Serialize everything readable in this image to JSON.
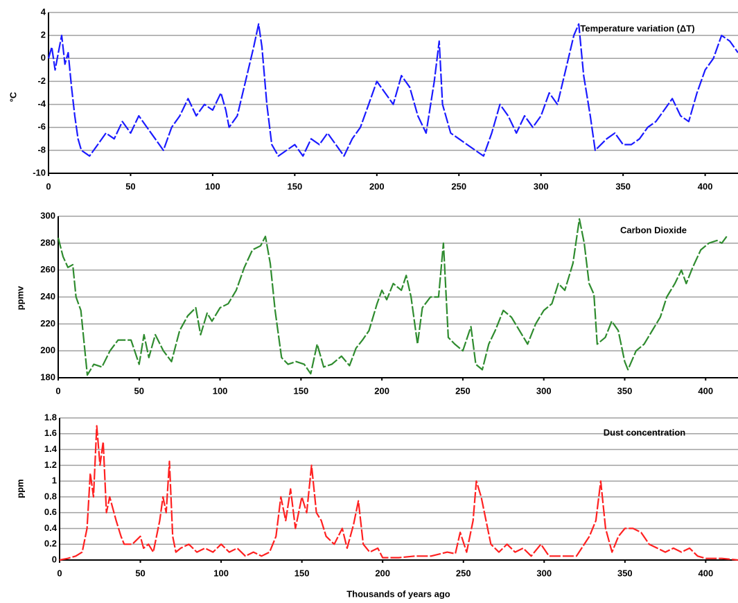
{
  "chart_data": [
    {
      "type": "line",
      "title": "Temperature variation (ΔT)",
      "y_label": "°C",
      "color": "#1a1aff",
      "grid": true,
      "xlim": [
        0,
        420
      ],
      "xticks": [
        0,
        50,
        100,
        150,
        200,
        250,
        300,
        350,
        400
      ],
      "ylim": [
        -10,
        4
      ],
      "yticks": [
        -10,
        -8,
        -6,
        -4,
        -2,
        0,
        2,
        4
      ],
      "x": [
        0,
        2,
        4,
        6,
        8,
        10,
        12,
        14,
        16,
        18,
        20,
        25,
        30,
        35,
        40,
        45,
        50,
        55,
        60,
        65,
        70,
        75,
        80,
        85,
        90,
        95,
        100,
        105,
        108,
        110,
        115,
        120,
        125,
        128,
        130,
        133,
        136,
        140,
        145,
        150,
        155,
        160,
        165,
        170,
        175,
        180,
        185,
        190,
        195,
        200,
        205,
        210,
        215,
        220,
        225,
        230,
        235,
        238,
        240,
        245,
        250,
        255,
        260,
        265,
        270,
        275,
        280,
        285,
        290,
        295,
        300,
        305,
        310,
        315,
        320,
        323,
        326,
        330,
        333,
        340,
        345,
        350,
        355,
        360,
        365,
        370,
        375,
        380,
        385,
        390,
        395,
        400,
        405,
        410,
        415,
        420
      ],
      "values": [
        0,
        1,
        -1,
        0.5,
        2,
        -0.5,
        0.5,
        -2.5,
        -5,
        -7,
        -8,
        -8.5,
        -7.5,
        -6.5,
        -7,
        -5.5,
        -6.5,
        -5,
        -6,
        -7,
        -8,
        -6,
        -5,
        -3.5,
        -5,
        -4,
        -4.5,
        -3,
        -4.5,
        -6,
        -5,
        -2,
        1,
        3,
        1,
        -4,
        -7.5,
        -8.5,
        -8,
        -7.5,
        -8.5,
        -7,
        -7.5,
        -6.5,
        -7.5,
        -8.5,
        -7,
        -6,
        -4,
        -2,
        -3,
        -4,
        -1.5,
        -2.5,
        -5,
        -6.5,
        -2,
        1.5,
        -4,
        -6.5,
        -7,
        -7.5,
        -8,
        -8.5,
        -6.5,
        -4,
        -5,
        -6.5,
        -5,
        -6,
        -5,
        -3,
        -4,
        -1,
        2,
        3,
        -1.5,
        -5,
        -8,
        -7,
        -6.5,
        -7.5,
        -7.5,
        -7,
        -6,
        -5.5,
        -4.5,
        -3.5,
        -5,
        -5.5,
        -3,
        -1,
        0,
        2,
        1.5,
        0.5
      ]
    },
    {
      "type": "line",
      "title": "Carbon Dioxide",
      "y_label": "ppmv",
      "color": "#2e8b2e",
      "grid": true,
      "xlim": [
        0,
        420
      ],
      "xticks": [
        0,
        50,
        100,
        150,
        200,
        250,
        300,
        350,
        400
      ],
      "ylim": [
        180,
        300
      ],
      "yticks": [
        180,
        200,
        220,
        240,
        260,
        280,
        300
      ],
      "x": [
        0,
        3,
        6,
        9,
        11,
        14,
        18,
        22,
        27,
        32,
        37,
        45,
        50,
        53,
        56,
        60,
        65,
        70,
        75,
        80,
        85,
        88,
        92,
        95,
        100,
        105,
        110,
        115,
        120,
        125,
        128,
        131,
        134,
        138,
        142,
        147,
        152,
        156,
        160,
        164,
        169,
        175,
        180,
        184,
        188,
        192,
        197,
        200,
        203,
        207,
        212,
        215,
        218,
        222,
        225,
        230,
        235,
        238,
        241,
        245,
        250,
        255,
        258,
        262,
        266,
        270,
        275,
        280,
        285,
        290,
        295,
        300,
        305,
        309,
        313,
        318,
        322,
        325,
        328,
        331,
        333,
        338,
        342,
        346,
        350,
        352,
        357,
        362,
        367,
        372,
        376,
        381,
        385,
        388,
        392,
        397,
        402,
        407,
        410,
        413
      ],
      "values": [
        284,
        270,
        262,
        264,
        240,
        230,
        182,
        190,
        188,
        200,
        208,
        208,
        190,
        212,
        195,
        212,
        200,
        192,
        215,
        226,
        232,
        212,
        228,
        222,
        232,
        235,
        245,
        262,
        275,
        278,
        285,
        265,
        230,
        195,
        190,
        192,
        190,
        183,
        205,
        188,
        190,
        196,
        189,
        202,
        208,
        215,
        235,
        245,
        238,
        250,
        245,
        256,
        240,
        205,
        232,
        240,
        240,
        280,
        210,
        205,
        200,
        218,
        190,
        186,
        205,
        215,
        230,
        225,
        215,
        205,
        220,
        230,
        235,
        250,
        245,
        265,
        298,
        280,
        250,
        242,
        205,
        210,
        222,
        215,
        192,
        186,
        200,
        205,
        215,
        225,
        240,
        250,
        260,
        250,
        262,
        275,
        280,
        282,
        280,
        285
      ]
    },
    {
      "type": "line",
      "title": "Dust concentration",
      "y_label": "ppm",
      "x_label": "Thousands of years ago",
      "color": "#ff2020",
      "grid": true,
      "xlim": [
        0,
        420
      ],
      "xticks": [
        0,
        50,
        100,
        150,
        200,
        250,
        300,
        350,
        400
      ],
      "ylim": [
        0,
        1.8
      ],
      "yticks": [
        0,
        0.2,
        0.4,
        0.6,
        0.8,
        1,
        1.2,
        1.4,
        1.6,
        1.8
      ],
      "x": [
        0,
        5,
        10,
        14,
        17,
        19,
        21,
        23,
        25,
        27,
        29,
        31,
        35,
        38,
        40,
        45,
        50,
        52,
        55,
        58,
        62,
        64,
        66,
        68,
        70,
        72,
        75,
        80,
        85,
        90,
        95,
        100,
        105,
        110,
        115,
        120,
        125,
        130,
        134,
        137,
        140,
        143,
        146,
        150,
        153,
        156,
        159,
        162,
        165,
        170,
        175,
        178,
        182,
        185,
        188,
        192,
        197,
        200,
        210,
        220,
        230,
        240,
        245,
        248,
        252,
        256,
        258,
        261,
        264,
        267,
        272,
        277,
        282,
        287,
        292,
        298,
        303,
        310,
        320,
        328,
        332,
        335,
        338,
        342,
        346,
        350,
        355,
        360,
        365,
        370,
        375,
        380,
        385,
        390,
        395,
        400,
        410,
        420
      ],
      "values": [
        0,
        0.02,
        0.05,
        0.1,
        0.4,
        1.1,
        0.8,
        1.7,
        1.2,
        1.5,
        0.6,
        0.8,
        0.5,
        0.3,
        0.2,
        0.2,
        0.3,
        0.15,
        0.2,
        0.1,
        0.5,
        0.8,
        0.6,
        1.25,
        0.3,
        0.1,
        0.15,
        0.2,
        0.1,
        0.15,
        0.1,
        0.2,
        0.1,
        0.15,
        0.05,
        0.1,
        0.05,
        0.1,
        0.3,
        0.8,
        0.5,
        0.9,
        0.4,
        0.8,
        0.6,
        1.2,
        0.6,
        0.5,
        0.3,
        0.2,
        0.4,
        0.15,
        0.45,
        0.75,
        0.2,
        0.1,
        0.15,
        0.03,
        0.03,
        0.05,
        0.05,
        0.1,
        0.08,
        0.35,
        0.1,
        0.5,
        1.0,
        0.8,
        0.5,
        0.2,
        0.1,
        0.2,
        0.1,
        0.15,
        0.05,
        0.2,
        0.05,
        0.05,
        0.05,
        0.3,
        0.5,
        1.0,
        0.4,
        0.1,
        0.3,
        0.4,
        0.4,
        0.35,
        0.2,
        0.15,
        0.1,
        0.15,
        0.1,
        0.15,
        0.05,
        0.02,
        0.02,
        0
      ]
    }
  ]
}
